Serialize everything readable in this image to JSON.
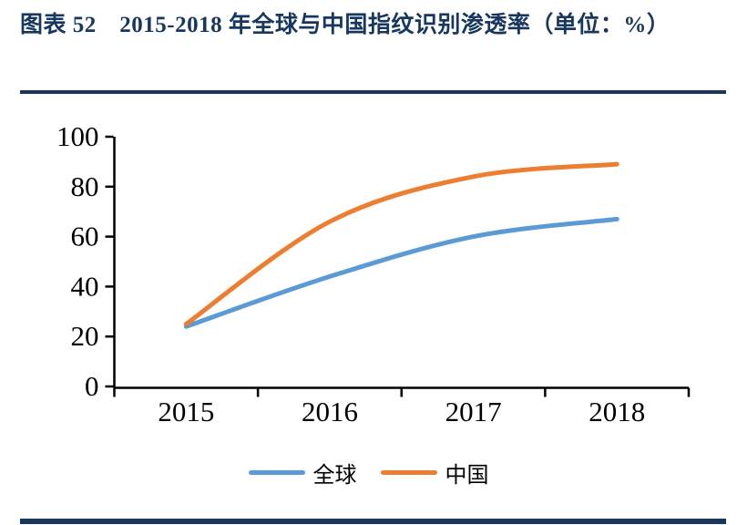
{
  "page": {
    "title": "图表 52　2015-2018 年全球与中国指纹识别渗透率（单位：%）"
  },
  "colors": {
    "accent_navy": "#17375E",
    "axis": "#000000",
    "series_global": "#5B9BD5",
    "series_china": "#ED7D31"
  },
  "chart_data": {
    "type": "line",
    "title": "图表 52　2015-2018 年全球与中国指纹识别渗透率（单位：%）",
    "categories": [
      "2015",
      "2016",
      "2017",
      "2018"
    ],
    "series": [
      {
        "key": "global",
        "name": "全球",
        "color": "#5B9BD5",
        "values": [
          24,
          44,
          60,
          67
        ]
      },
      {
        "key": "china",
        "name": "中国",
        "color": "#ED7D31",
        "values": [
          25,
          66,
          84,
          89
        ]
      }
    ],
    "xlabel": "",
    "ylabel": "",
    "ylim": [
      0,
      100
    ],
    "yticks": [
      0,
      20,
      40,
      60,
      80,
      100
    ],
    "grid": false,
    "smooth": true,
    "legend_position": "bottom"
  }
}
